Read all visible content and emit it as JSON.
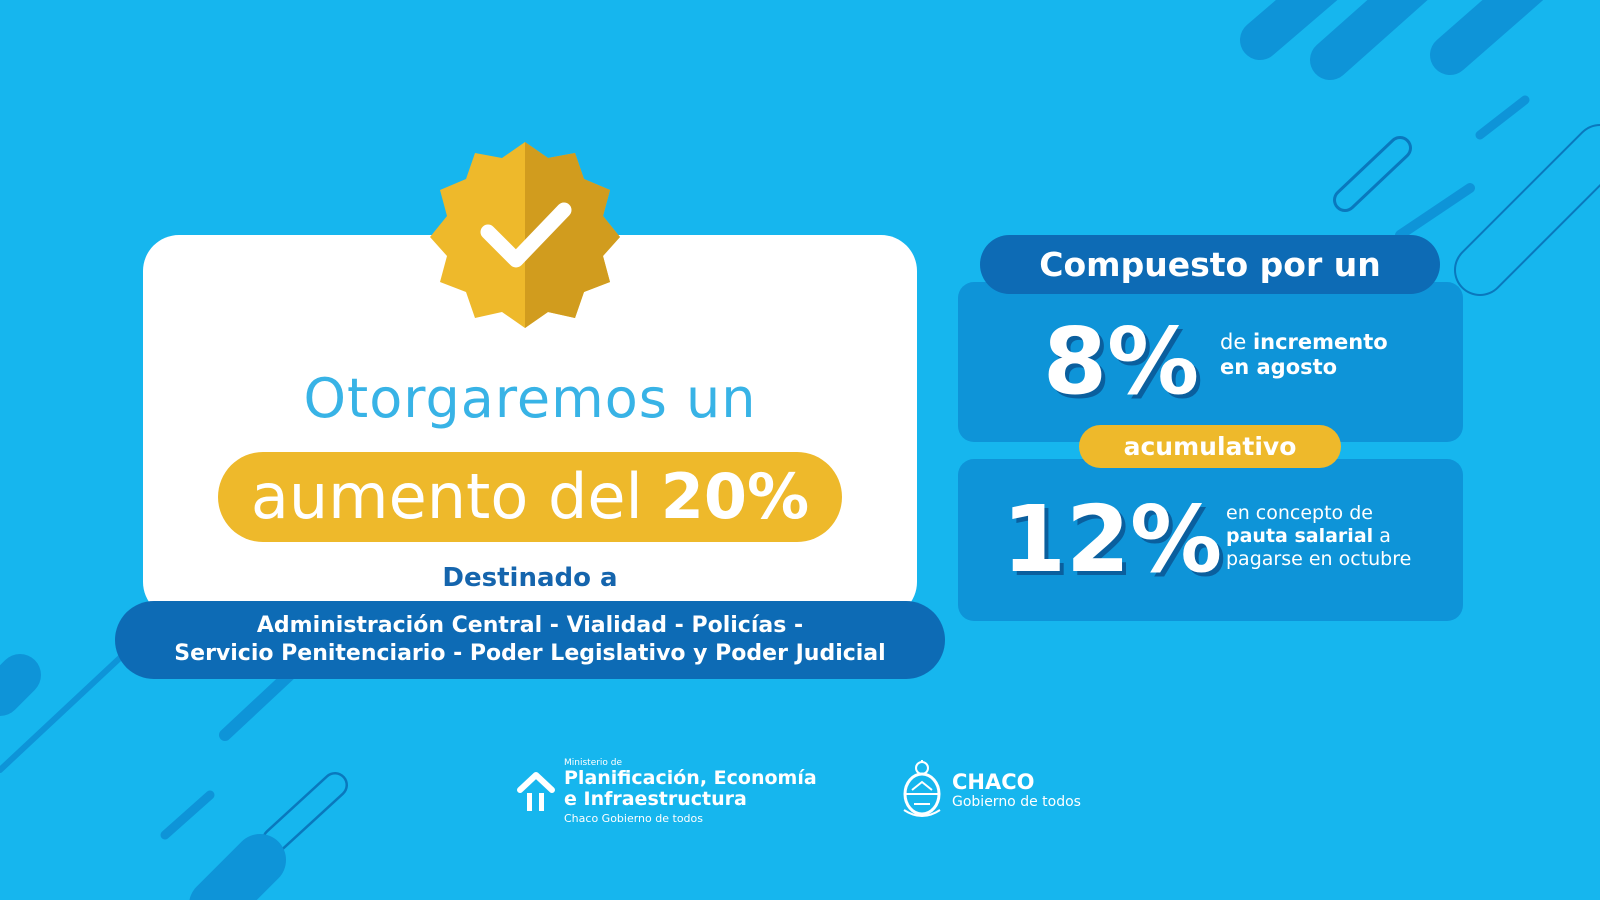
{
  "colors": {
    "background": "#16b6ee",
    "yellow": "#eeb92b",
    "dark_blue": "#0d6bb5",
    "mid_blue": "#0e94d8",
    "headline_blue": "#38b3e6"
  },
  "badge": {
    "icon": "check-icon"
  },
  "left_card": {
    "headline": "Otorgaremos un",
    "increase_text": "aumento del",
    "increase_pct": "20%",
    "destinado_label": "Destinado a",
    "sectors_line1": "Administración Central - Vialidad - Policías -",
    "sectors_line2": "Servicio Penitenciario - Poder Legislativo y Poder Judicial"
  },
  "right_panel": {
    "compuesto_label": "Compuesto por un",
    "first": {
      "value": "8%",
      "desc_prefix": "de",
      "desc_bold": "incremento",
      "desc_line2": "en agosto"
    },
    "accumulative_label": "acumulativo",
    "second": {
      "value": "12%",
      "desc_line1": "en concepto de",
      "desc_bold": "pauta salarial",
      "desc_after": "a",
      "desc_line3": "pagarse en octubre"
    }
  },
  "footer": {
    "ministry": {
      "small": "Ministerio de",
      "line1": "Planificación, Economía",
      "line2": "e Infraestructura",
      "sub": "Chaco Gobierno de todos"
    },
    "chaco": {
      "name": "CHACO",
      "sub": "Gobierno de todos"
    }
  }
}
